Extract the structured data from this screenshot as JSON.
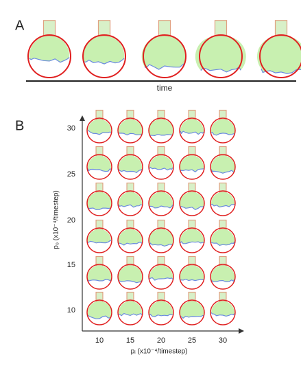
{
  "panel_a": {
    "label": "A",
    "axis_label": "time"
  },
  "panel_b": {
    "label": "B",
    "x_axis_label": "pᵢ (x10⁻⁴/timestep)",
    "y_axis_label": "p₀ (x10⁻⁴/timestep)",
    "x_ticks": [
      "10",
      "15",
      "20",
      "25",
      "30"
    ],
    "y_ticks": [
      "30",
      "25",
      "20",
      "15",
      "10"
    ]
  }
}
